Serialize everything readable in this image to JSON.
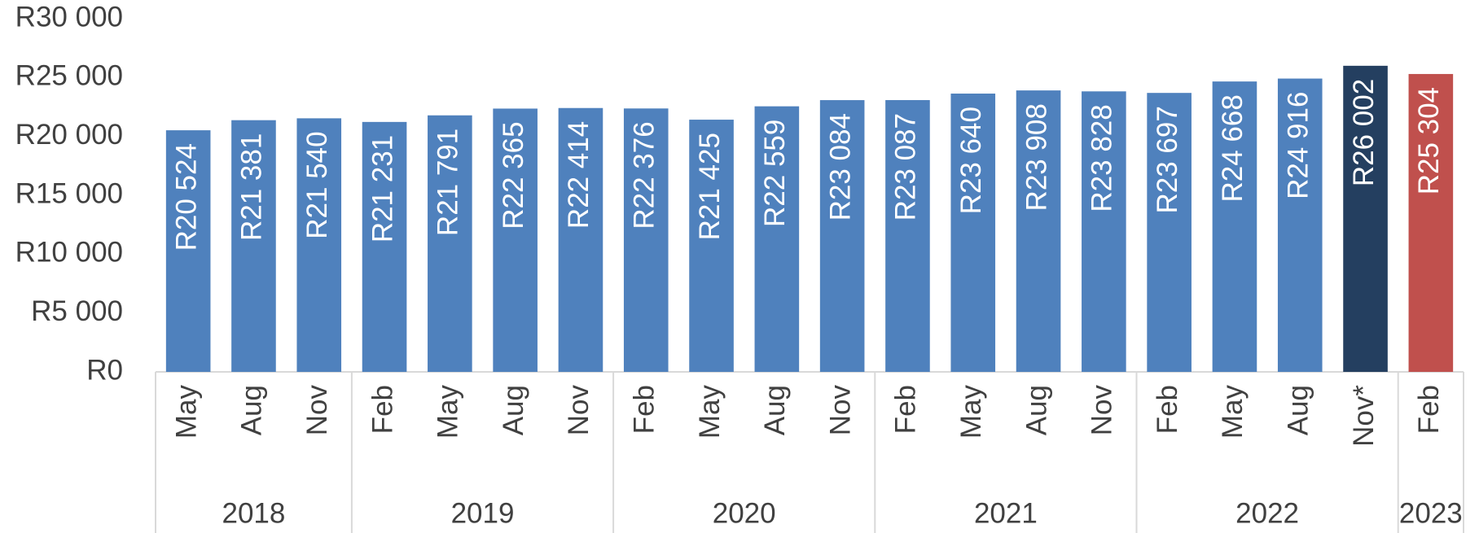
{
  "chart_data": {
    "type": "bar",
    "groups": [
      {
        "label": "2018",
        "categories": [
          "May",
          "Aug",
          "Nov"
        ],
        "values": [
          20524,
          21381,
          21540
        ],
        "value_labels": [
          "R20 524",
          "R21 381",
          "R21 540"
        ],
        "colors": [
          "#4f81bd",
          "#4f81bd",
          "#4f81bd"
        ]
      },
      {
        "label": "2019",
        "categories": [
          "Feb",
          "May",
          "Aug",
          "Nov"
        ],
        "values": [
          21231,
          21791,
          22365,
          22414
        ],
        "value_labels": [
          "R21 231",
          "R21 791",
          "R22 365",
          "R22 414"
        ],
        "colors": [
          "#4f81bd",
          "#4f81bd",
          "#4f81bd",
          "#4f81bd"
        ]
      },
      {
        "label": "2020",
        "categories": [
          "Feb",
          "May",
          "Aug",
          "Nov"
        ],
        "values": [
          22376,
          21425,
          22559,
          23084
        ],
        "value_labels": [
          "R22 376",
          "R21 425",
          "R22 559",
          "R23 084"
        ],
        "colors": [
          "#4f81bd",
          "#4f81bd",
          "#4f81bd",
          "#4f81bd"
        ]
      },
      {
        "label": "2021",
        "categories": [
          "Feb",
          "May",
          "Aug",
          "Nov"
        ],
        "values": [
          23087,
          23640,
          23908,
          23828
        ],
        "value_labels": [
          "R23 087",
          "R23 640",
          "R23 908",
          "R23 828"
        ],
        "colors": [
          "#4f81bd",
          "#4f81bd",
          "#4f81bd",
          "#4f81bd"
        ]
      },
      {
        "label": "2022",
        "categories": [
          "Feb",
          "May",
          "Aug",
          "Nov*"
        ],
        "values": [
          23697,
          24668,
          24916,
          26002
        ],
        "value_labels": [
          "R23 697",
          "R24 668",
          "R24 916",
          "R26 002"
        ],
        "colors": [
          "#4f81bd",
          "#4f81bd",
          "#4f81bd",
          "#243f60"
        ]
      },
      {
        "label": "2023",
        "categories": [
          "Feb"
        ],
        "values": [
          25304
        ],
        "value_labels": [
          "R25 304"
        ],
        "colors": [
          "#c0504d"
        ]
      }
    ],
    "ylim": [
      0,
      30000
    ],
    "yticks": [
      {
        "value": 0,
        "label": "R0"
      },
      {
        "value": 5000,
        "label": "R5 000"
      },
      {
        "value": 10000,
        "label": "R10 000"
      },
      {
        "value": 15000,
        "label": "R15 000"
      },
      {
        "value": 20000,
        "label": "R20 000"
      },
      {
        "value": 25000,
        "label": "R25 000"
      },
      {
        "value": 30000,
        "label": "R30 000"
      }
    ],
    "grid": false
  }
}
